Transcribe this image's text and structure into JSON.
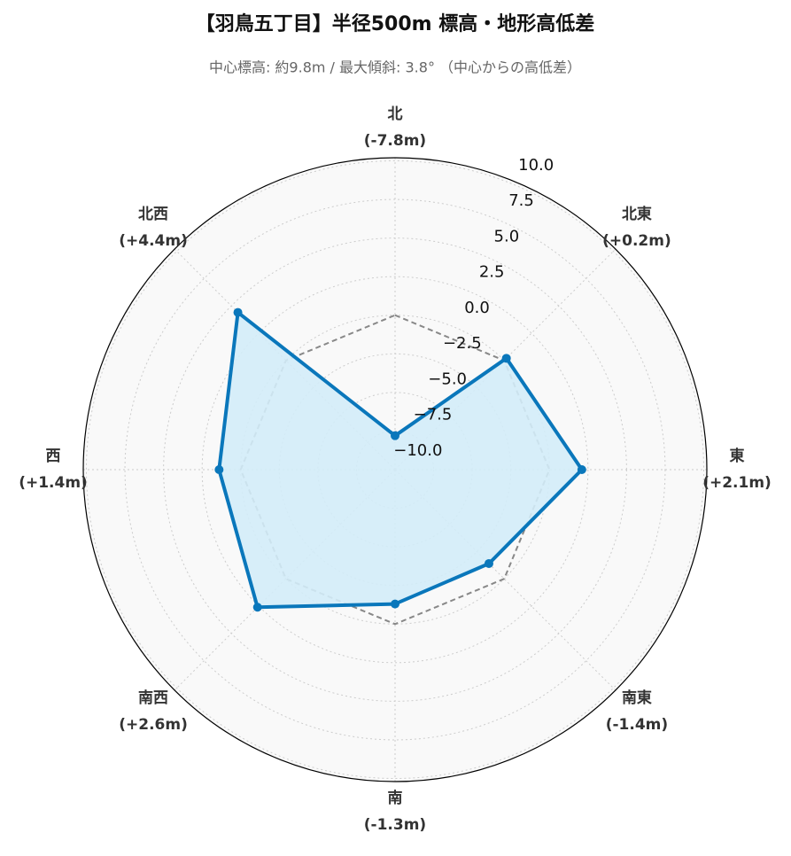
{
  "chart_data": {
    "type": "radar",
    "title": "【羽鳥五丁目】半径500m 標高・地形高低差",
    "subtitle": "中心標高: 約9.8m / 最大傾斜: 3.8° （中心からの高低差）",
    "categories": [
      "北",
      "北東",
      "東",
      "南東",
      "南",
      "南西",
      "西",
      "北西"
    ],
    "series": [
      {
        "color": "#0a77bb",
        "fill": "#d3ecf8",
        "dashed": false,
        "markers": true,
        "values": [
          -7.8,
          0.2,
          2.1,
          -1.4,
          -1.3,
          2.6,
          1.4,
          4.4
        ],
        "value_labels": [
          "(-7.8m)",
          "(+0.2m)",
          "(+2.1m)",
          "(-1.4m)",
          "(-1.3m)",
          "(+2.6m)",
          "(+1.4m)",
          "(+4.4m)"
        ]
      },
      {
        "color": "#888888",
        "dashed": true,
        "markers": false,
        "values": [
          0,
          0,
          0,
          0,
          0,
          0,
          0,
          0
        ]
      }
    ],
    "rlim": [
      -10,
      10.2
    ],
    "rticks": [
      {
        "value": -10,
        "label": "−10.0"
      },
      {
        "value": -7.5,
        "label": "−7.5"
      },
      {
        "value": -5,
        "label": "−5.0"
      },
      {
        "value": -2.5,
        "label": "−2.5"
      },
      {
        "value": 0,
        "label": "0.0"
      },
      {
        "value": 2.5,
        "label": "2.5"
      },
      {
        "value": 5,
        "label": "5.0"
      },
      {
        "value": 7.5,
        "label": "7.5"
      },
      {
        "value": 10,
        "label": "10.0"
      }
    ],
    "grid": true
  }
}
